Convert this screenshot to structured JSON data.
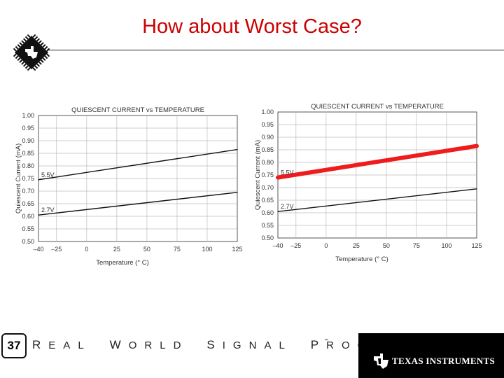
{
  "slide": {
    "title": "How about Worst Case?",
    "number": "37",
    "tagline": "REAL WORLD SIGNAL PROCESSING",
    "trademark": "™",
    "brand": "TEXAS INSTRUMENTS"
  },
  "colors": {
    "title": "#cc0000",
    "highlight": "#ee1c1c",
    "line": "#111111",
    "grid": "#bbbbbb",
    "footer_bar": "#000000"
  },
  "chart_data": [
    {
      "type": "line",
      "title": "QUIESCENT CURRENT vs TEMPERATURE",
      "xlabel": "Temperature (° C)",
      "ylabel": "Quiescent Current (mA)",
      "xlim": [
        -40,
        125
      ],
      "ylim": [
        0.5,
        1.0
      ],
      "x_ticks": [
        "–40",
        "–25",
        "0",
        "25",
        "50",
        "75",
        "100",
        "125"
      ],
      "x_tick_values": [
        -40,
        -25,
        0,
        25,
        50,
        75,
        100,
        125
      ],
      "y_ticks": [
        "0.50",
        "0.55",
        "0.60",
        "0.65",
        "0.70",
        "0.75",
        "0.80",
        "0.85",
        "0.90",
        "0.95",
        "1.00"
      ],
      "y_tick_values": [
        0.5,
        0.55,
        0.6,
        0.65,
        0.7,
        0.75,
        0.8,
        0.85,
        0.9,
        0.95,
        1.0
      ],
      "grid": true,
      "series": [
        {
          "name": "5.5V",
          "x": [
            -40,
            125
          ],
          "values": [
            0.745,
            0.865
          ],
          "highlight": false
        },
        {
          "name": "2.7V",
          "x": [
            -40,
            125
          ],
          "values": [
            0.605,
            0.695
          ],
          "highlight": false
        }
      ]
    },
    {
      "type": "line",
      "title": "QUIESCENT CURRENT vs TEMPERATURE",
      "xlabel": "Temperature (° C)",
      "ylabel": "Quiescent Current (mA)",
      "xlim": [
        -40,
        125
      ],
      "ylim": [
        0.5,
        1.0
      ],
      "x_ticks": [
        "–40",
        "–25",
        "0",
        "25",
        "50",
        "75",
        "100",
        "125"
      ],
      "x_tick_values": [
        -40,
        -25,
        0,
        25,
        50,
        75,
        100,
        125
      ],
      "y_ticks": [
        "0.50",
        "0.55",
        "0.60",
        "0.65",
        "0.70",
        "0.75",
        "0.80",
        "0.85",
        "0.90",
        "0.95",
        "1.00"
      ],
      "y_tick_values": [
        0.5,
        0.55,
        0.6,
        0.65,
        0.7,
        0.75,
        0.8,
        0.85,
        0.9,
        0.95,
        1.0
      ],
      "grid": true,
      "series": [
        {
          "name": "5.5V",
          "x": [
            -40,
            125
          ],
          "values": [
            0.74,
            0.865
          ],
          "highlight": true
        },
        {
          "name": "2.7V",
          "x": [
            -40,
            125
          ],
          "values": [
            0.605,
            0.695
          ],
          "highlight": false
        }
      ]
    }
  ]
}
